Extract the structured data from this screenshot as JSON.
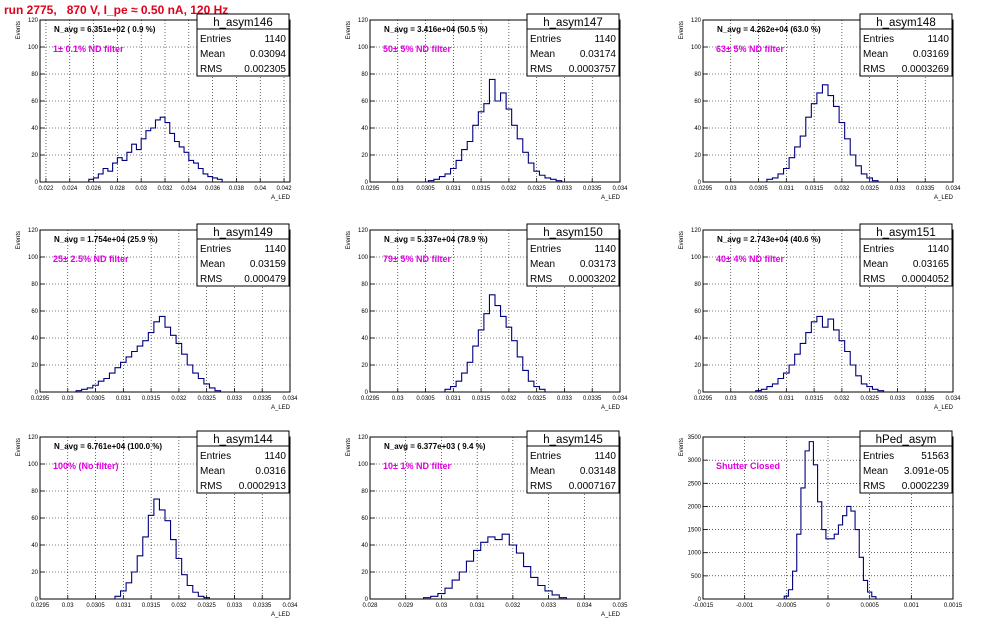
{
  "run_title": "run 2775,   870 V, I_pe ≈ 0.50 nA, 120 Hz",
  "colors": {
    "title": "#e0001a",
    "annotation": "#e000e0",
    "histogram": "#000080"
  },
  "stat_labels": {
    "entries": "Entries",
    "mean": "Mean",
    "rms": "RMS"
  },
  "chart_data": [
    {
      "type": "histogram",
      "name": "h_asym146",
      "navg": "N_avg = 6.351e+02 ( 0.9 %)",
      "annotation": "1± 0.1% ND filter",
      "entries": "1140",
      "mean": "0.03094",
      "rms": "0.002305",
      "xlabel": "A_LED",
      "ylabel": "Events",
      "xlim": [
        0.0215,
        0.0425
      ],
      "ylim": [
        0,
        120
      ],
      "xticks": [
        0.022,
        0.024,
        0.026,
        0.028,
        0.03,
        0.032,
        0.034,
        0.036,
        0.038,
        0.04,
        0.042
      ],
      "xtick_labels": [
        "0.022",
        "0.024",
        "0.026",
        "0.028",
        "0.03",
        "0.032",
        "0.034",
        "0.036",
        "0.038",
        "0.04",
        "0.042"
      ],
      "yticks": [
        0,
        20,
        40,
        60,
        80,
        100,
        120
      ],
      "x": [
        0.0258,
        0.0262,
        0.0266,
        0.027,
        0.0274,
        0.0278,
        0.0282,
        0.0286,
        0.029,
        0.0294,
        0.0298,
        0.0302,
        0.0306,
        0.031,
        0.0314,
        0.0318,
        0.0322,
        0.0326,
        0.033,
        0.0334,
        0.0338,
        0.0342,
        0.0346,
        0.035,
        0.0354,
        0.0358,
        0.0362,
        0.0366
      ],
      "values": [
        2,
        3,
        6,
        10,
        8,
        14,
        18,
        16,
        22,
        28,
        24,
        32,
        38,
        40,
        46,
        48,
        44,
        36,
        30,
        26,
        22,
        16,
        14,
        10,
        6,
        4,
        3,
        2
      ]
    },
    {
      "type": "histogram",
      "name": "h_asym147",
      "navg": "N_avg = 3.416e+04 (50.5 %)",
      "annotation": "50± 5% ND filter",
      "entries": "1140",
      "mean": "0.03174",
      "rms": "0.0003757",
      "xlabel": "A_LED",
      "ylabel": "Events",
      "xlim": [
        0.0295,
        0.034
      ],
      "ylim": [
        0,
        120
      ],
      "xticks": [
        0.0295,
        0.03,
        0.0305,
        0.031,
        0.0315,
        0.032,
        0.0325,
        0.033,
        0.0335,
        0.034
      ],
      "xtick_labels": [
        "0.0295",
        "0.03",
        "0.0305",
        "0.031",
        "0.0315",
        "0.032",
        "0.0325",
        "0.033",
        "0.0335",
        "0.034"
      ],
      "yticks": [
        0,
        20,
        40,
        60,
        80,
        100,
        120
      ],
      "x": [
        0.0306,
        0.0307,
        0.0308,
        0.0309,
        0.031,
        0.0311,
        0.0312,
        0.0313,
        0.0314,
        0.0315,
        0.0316,
        0.0317,
        0.0318,
        0.0319,
        0.032,
        0.0321,
        0.0322,
        0.0323,
        0.0324,
        0.0325,
        0.0326,
        0.0327,
        0.0328,
        0.0329
      ],
      "values": [
        1,
        2,
        4,
        6,
        10,
        16,
        24,
        30,
        42,
        52,
        58,
        76,
        60,
        66,
        54,
        42,
        32,
        22,
        14,
        8,
        5,
        3,
        2,
        1
      ]
    },
    {
      "type": "histogram",
      "name": "h_asym148",
      "navg": "N_avg = 4.262e+04 (63.0 %)",
      "annotation": "63± 5% ND filter",
      "entries": "1140",
      "mean": "0.03169",
      "rms": "0.0003269",
      "xlabel": "A_LED",
      "ylabel": "Events",
      "xlim": [
        0.0295,
        0.034
      ],
      "ylim": [
        0,
        120
      ],
      "xticks": [
        0.0295,
        0.03,
        0.0305,
        0.031,
        0.0315,
        0.032,
        0.0325,
        0.033,
        0.0335,
        0.034
      ],
      "xtick_labels": [
        "0.0295",
        "0.03",
        "0.0305",
        "0.031",
        "0.0315",
        "0.032",
        "0.0325",
        "0.033",
        "0.0335",
        "0.034"
      ],
      "yticks": [
        0,
        20,
        40,
        60,
        80,
        100,
        120
      ],
      "x": [
        0.0307,
        0.0308,
        0.0309,
        0.031,
        0.0311,
        0.0312,
        0.0313,
        0.0314,
        0.0315,
        0.0316,
        0.0317,
        0.0318,
        0.0319,
        0.032,
        0.0321,
        0.0322,
        0.0323,
        0.0324,
        0.0325,
        0.0326
      ],
      "values": [
        2,
        3,
        6,
        10,
        18,
        26,
        34,
        48,
        58,
        66,
        72,
        64,
        56,
        44,
        32,
        20,
        12,
        6,
        3,
        1
      ]
    },
    {
      "type": "histogram",
      "name": "h_asym149",
      "navg": "N_avg = 1.754e+04 (25.9 %)",
      "annotation": "25± 2.5% ND filter",
      "entries": "1140",
      "mean": "0.03159",
      "rms": "0.000479",
      "xlabel": "A_LED",
      "ylabel": "Events",
      "xlim": [
        0.0295,
        0.034
      ],
      "ylim": [
        0,
        120
      ],
      "xticks": [
        0.0295,
        0.03,
        0.0305,
        0.031,
        0.0315,
        0.032,
        0.0325,
        0.033,
        0.0335,
        0.034
      ],
      "xtick_labels": [
        "0.0295",
        "0.03",
        "0.0305",
        "0.031",
        "0.0315",
        "0.032",
        "0.0325",
        "0.033",
        "0.0335",
        "0.034"
      ],
      "yticks": [
        0,
        20,
        40,
        60,
        80,
        100,
        120
      ],
      "x": [
        0.0302,
        0.0303,
        0.0304,
        0.0305,
        0.0306,
        0.0307,
        0.0308,
        0.0309,
        0.031,
        0.0311,
        0.0312,
        0.0313,
        0.0314,
        0.0315,
        0.0316,
        0.0317,
        0.0318,
        0.0319,
        0.032,
        0.0321,
        0.0322,
        0.0323,
        0.0324,
        0.0325,
        0.0326,
        0.0327
      ],
      "values": [
        1,
        2,
        3,
        5,
        8,
        10,
        14,
        18,
        22,
        26,
        30,
        34,
        38,
        44,
        52,
        56,
        48,
        42,
        36,
        28,
        20,
        14,
        10,
        6,
        3,
        1
      ]
    },
    {
      "type": "histogram",
      "name": "h_asym150",
      "navg": "N_avg = 5.337e+04 (78.9 %)",
      "annotation": "79± 5% ND filter",
      "entries": "1140",
      "mean": "0.03173",
      "rms": "0.0003202",
      "xlabel": "A_LED",
      "ylabel": "Events",
      "xlim": [
        0.0295,
        0.034
      ],
      "ylim": [
        0,
        120
      ],
      "xticks": [
        0.0295,
        0.03,
        0.0305,
        0.031,
        0.0315,
        0.032,
        0.0325,
        0.033,
        0.0335,
        0.034
      ],
      "xtick_labels": [
        "0.0295",
        "0.03",
        "0.0305",
        "0.031",
        "0.0315",
        "0.032",
        "0.0325",
        "0.033",
        "0.0335",
        "0.034"
      ],
      "yticks": [
        0,
        20,
        40,
        60,
        80,
        100,
        120
      ],
      "x": [
        0.0309,
        0.031,
        0.0311,
        0.0312,
        0.0313,
        0.0314,
        0.0315,
        0.0316,
        0.0317,
        0.0318,
        0.0319,
        0.032,
        0.0321,
        0.0322,
        0.0323,
        0.0324,
        0.0325,
        0.0326
      ],
      "values": [
        2,
        4,
        8,
        14,
        22,
        34,
        46,
        58,
        72,
        64,
        56,
        48,
        38,
        26,
        16,
        8,
        4,
        2
      ]
    },
    {
      "type": "histogram",
      "name": "h_asym151",
      "navg": "N_avg = 2.743e+04 (40.6 %)",
      "annotation": "40± 4% ND filter",
      "entries": "1140",
      "mean": "0.03165",
      "rms": "0.0004052",
      "xlabel": "A_LED",
      "ylabel": "Events",
      "xlim": [
        0.0295,
        0.034
      ],
      "ylim": [
        0,
        120
      ],
      "xticks": [
        0.0295,
        0.03,
        0.0305,
        0.031,
        0.0315,
        0.032,
        0.0325,
        0.033,
        0.0335,
        0.034
      ],
      "xtick_labels": [
        "0.0295",
        "0.03",
        "0.0305",
        "0.031",
        "0.0315",
        "0.032",
        "0.0325",
        "0.033",
        "0.0335",
        "0.034"
      ],
      "yticks": [
        0,
        20,
        40,
        60,
        80,
        100,
        120
      ],
      "x": [
        0.0305,
        0.0306,
        0.0307,
        0.0308,
        0.0309,
        0.031,
        0.0311,
        0.0312,
        0.0313,
        0.0314,
        0.0315,
        0.0316,
        0.0317,
        0.0318,
        0.0319,
        0.032,
        0.0321,
        0.0322,
        0.0323,
        0.0324,
        0.0325,
        0.0326,
        0.0327
      ],
      "values": [
        1,
        2,
        4,
        6,
        10,
        14,
        20,
        28,
        36,
        44,
        52,
        56,
        48,
        54,
        46,
        38,
        30,
        20,
        12,
        6,
        4,
        2,
        1
      ]
    },
    {
      "type": "histogram",
      "name": "h_asym144",
      "navg": "N_avg = 6.761e+04 (100.0 %)",
      "annotation": "100% (No filter)",
      "entries": "1140",
      "mean": "0.0316",
      "rms": "0.0002913",
      "xlabel": "A_LED",
      "ylabel": "Events",
      "xlim": [
        0.0295,
        0.034
      ],
      "ylim": [
        0,
        120
      ],
      "xticks": [
        0.0295,
        0.03,
        0.0305,
        0.031,
        0.0315,
        0.032,
        0.0325,
        0.033,
        0.0335,
        0.034
      ],
      "xtick_labels": [
        "0.0295",
        "0.03",
        "0.0305",
        "0.031",
        "0.0315",
        "0.032",
        "0.0325",
        "0.033",
        "0.0335",
        "0.034"
      ],
      "yticks": [
        0,
        20,
        40,
        60,
        80,
        100,
        120
      ],
      "x": [
        0.0309,
        0.031,
        0.0311,
        0.0312,
        0.0313,
        0.0314,
        0.0315,
        0.0316,
        0.0317,
        0.0318,
        0.0319,
        0.032,
        0.0321,
        0.0322,
        0.0323,
        0.0324,
        0.0325
      ],
      "values": [
        2,
        6,
        12,
        20,
        32,
        46,
        62,
        74,
        66,
        58,
        44,
        30,
        18,
        10,
        5,
        2,
        1
      ]
    },
    {
      "type": "histogram",
      "name": "h_asym145",
      "navg": "N_avg = 6.377e+03 ( 9.4 %)",
      "annotation": "10± 1% ND filter",
      "entries": "1140",
      "mean": "0.03148",
      "rms": "0.0007167",
      "xlabel": "A_LED",
      "ylabel": "Events",
      "xlim": [
        0.028,
        0.035
      ],
      "ylim": [
        0,
        120
      ],
      "xticks": [
        0.028,
        0.029,
        0.03,
        0.031,
        0.032,
        0.033,
        0.034,
        0.035
      ],
      "xtick_labels": [
        "0.028",
        "0.029",
        "0.03",
        "0.031",
        "0.032",
        "0.033",
        "0.034",
        "0.035"
      ],
      "yticks": [
        0,
        20,
        40,
        60,
        80,
        100,
        120
      ],
      "x": [
        0.0296,
        0.0298,
        0.03,
        0.0302,
        0.0304,
        0.0306,
        0.0308,
        0.031,
        0.0312,
        0.0314,
        0.0316,
        0.0318,
        0.032,
        0.0322,
        0.0324,
        0.0326,
        0.0328,
        0.033,
        0.0332,
        0.0334
      ],
      "values": [
        1,
        2,
        4,
        8,
        14,
        20,
        28,
        36,
        42,
        46,
        44,
        48,
        40,
        34,
        24,
        16,
        10,
        6,
        3,
        1
      ]
    },
    {
      "type": "histogram",
      "name": "hPed_asym",
      "navg": "",
      "annotation": "Shutter Closed",
      "entries": "51563",
      "mean": "3.091e-05",
      "rms": "0.0002239",
      "xlabel": "",
      "ylabel": "Events",
      "xlim": [
        -0.0015,
        0.0015
      ],
      "ylim": [
        0,
        3500
      ],
      "xticks": [
        -0.0015,
        -0.001,
        -0.0005,
        0,
        0.0005,
        0.001,
        0.0015
      ],
      "xtick_labels": [
        "-0.0015",
        "-0.001",
        "-0.0005",
        "0",
        "0.0005",
        "0.001",
        "0.0015"
      ],
      "yticks": [
        0,
        500,
        1000,
        1500,
        2000,
        2500,
        3000,
        3500
      ],
      "x": [
        -0.0005,
        -0.00045,
        -0.0004,
        -0.00035,
        -0.0003,
        -0.00025,
        -0.0002,
        -0.00015,
        -0.0001,
        -5e-05,
        0,
        5e-05,
        0.0001,
        0.00015,
        0.0002,
        0.00025,
        0.0003,
        0.00035,
        0.0004,
        0.00045,
        0.0005,
        0.00055
      ],
      "values": [
        60,
        200,
        600,
        1400,
        2400,
        3200,
        3400,
        2900,
        2100,
        1500,
        1300,
        1300,
        1400,
        1600,
        1800,
        2000,
        1900,
        1500,
        900,
        400,
        150,
        50
      ]
    }
  ]
}
